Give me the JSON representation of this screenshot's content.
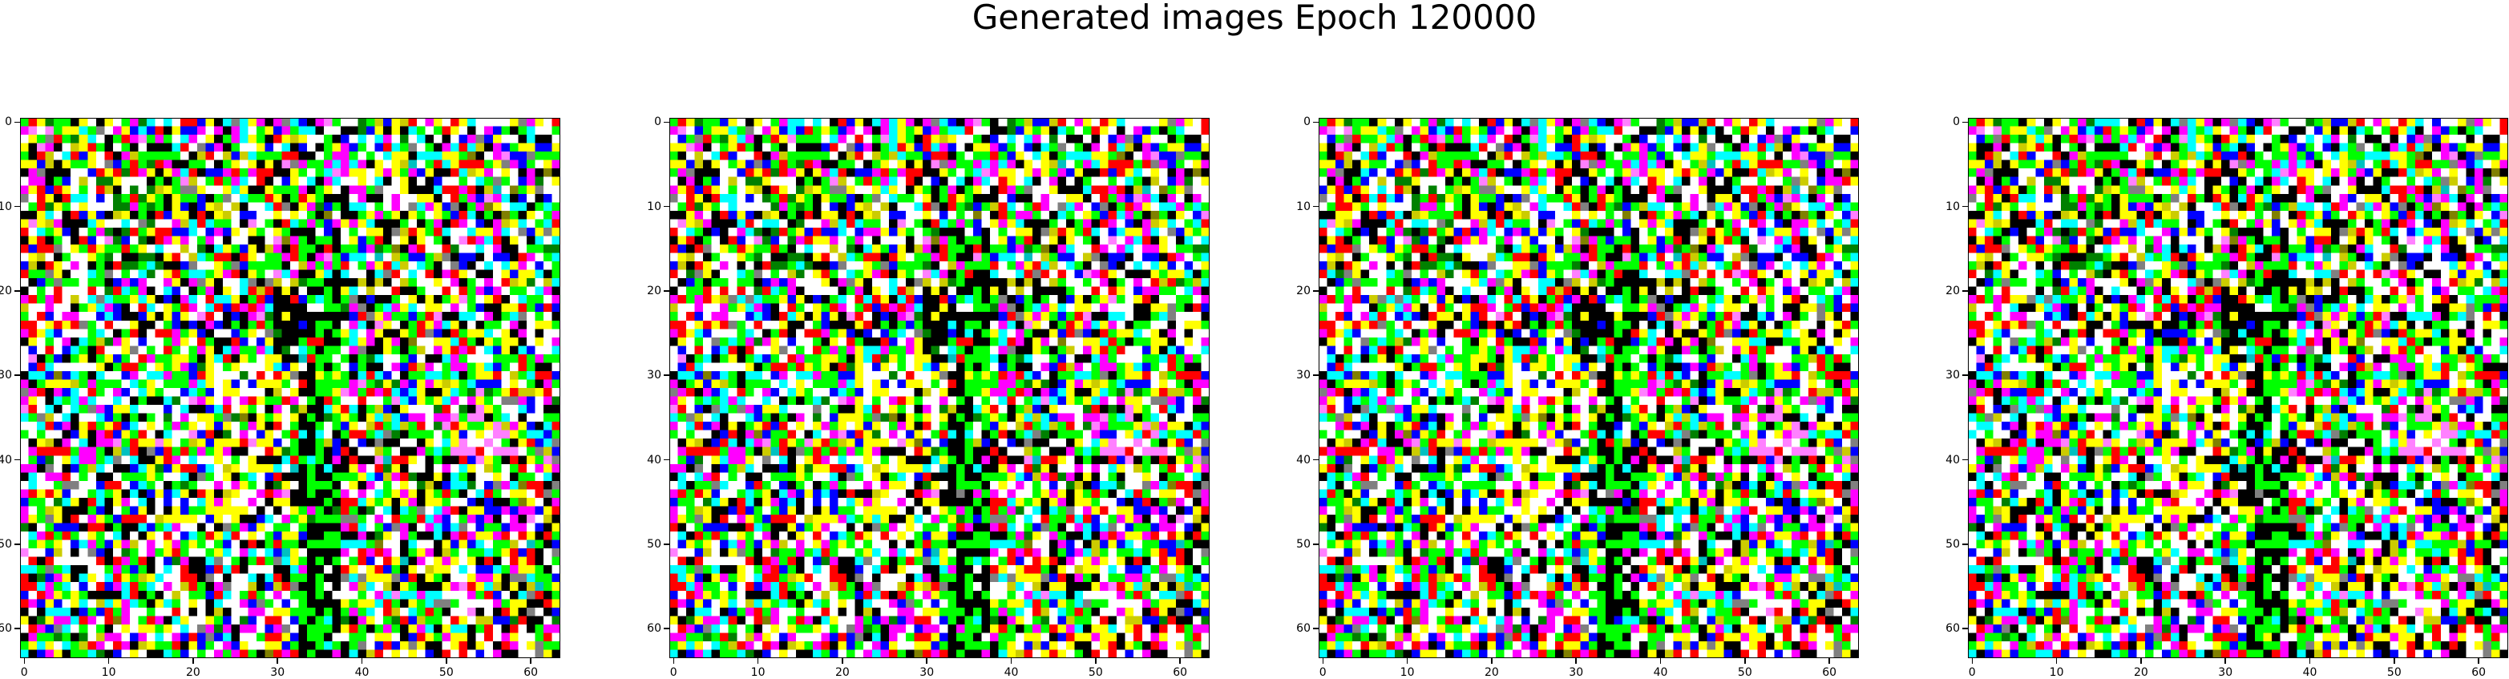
{
  "figure": {
    "title": "Generated images Epoch 120000"
  },
  "image_grid": {
    "count": 4,
    "resolution": 64,
    "axis_range": [
      0,
      63
    ],
    "xticks": [
      0,
      10,
      20,
      30,
      40,
      50,
      60
    ],
    "yticks": [
      0,
      10,
      20,
      30,
      40,
      50,
      60
    ],
    "palette": [
      "#000000",
      "#ffffff",
      "#ff0000",
      "#00ff00",
      "#0000ff",
      "#ffff00",
      "#00ffff",
      "#ff00ff",
      "#808080",
      "#cccc00",
      "#008000",
      "#ff80ff",
      "#00c0c0",
      "#808000"
    ],
    "features": "dark vertical band with bright green pixels near column 35; bright yellow/white patches around columns 22-33; mostly noise-like multicolor pixels elsewhere"
  }
}
